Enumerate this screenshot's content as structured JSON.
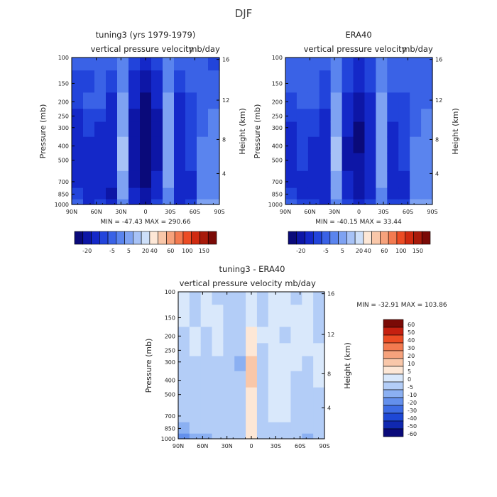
{
  "main_title": "DJF",
  "lat_labels": [
    "90N",
    "60N",
    "30N",
    "0",
    "30S",
    "60S",
    "90S"
  ],
  "pressure_labels": [
    "100",
    "150",
    "200",
    "250",
    "300",
    "400",
    "500",
    "700",
    "850",
    "1000"
  ],
  "height_labels": [
    "16",
    "12",
    "8",
    "4"
  ],
  "y_label": "Pressure (mb)",
  "y2_label": "Height (km)",
  "field_label": "vertical pressure velocity",
  "units_label": "mb/day",
  "panels": {
    "model": {
      "title": "tuning3 (yrs 1979-1979)",
      "stats": "MIN = -47.43   MAX = 290.66"
    },
    "obs": {
      "title": "ERA40",
      "stats": "MIN = -40.15   MAX = 33.44"
    },
    "diff": {
      "title": "tuning3 - ERA40",
      "stats": "MIN = -32.91   MAX = 103.86"
    }
  },
  "colorbar_main": {
    "labels": [
      "-20",
      "-5",
      "5",
      "20",
      "40",
      "60",
      "100",
      "150"
    ],
    "colors": [
      "#0a0a7a",
      "#0d16a6",
      "#1428c8",
      "#2244db",
      "#3a62e6",
      "#5a84ee",
      "#7ea2f2",
      "#a7c2f6",
      "#cddff9",
      "#fde7d6",
      "#f9c7a9",
      "#f6a27c",
      "#f37a50",
      "#ec4c24",
      "#cf2a10",
      "#a81a0a",
      "#7a0a06"
    ]
  },
  "colorbar_diff": {
    "labels": [
      "60",
      "50",
      "40",
      "30",
      "20",
      "10",
      "5",
      "0",
      "-5",
      "-10",
      "-20",
      "-30",
      "-40",
      "-50",
      "-60"
    ],
    "colors": [
      "#7a0a06",
      "#c52010",
      "#ec4c24",
      "#f37a50",
      "#f6a27c",
      "#f9c7a9",
      "#fde7d6",
      "#d9e8fb",
      "#b3cdf7",
      "#8bb0f2",
      "#6490ec",
      "#3e6ce4",
      "#1e48d6",
      "#1028b0",
      "#0a0a7a"
    ]
  },
  "chart_data": [
    {
      "type": "heatmap",
      "title": "tuning3 (yrs 1979-1979)",
      "subtitle": "vertical pressure velocity  mb/day",
      "xlabel": "",
      "ylabel": "Pressure (mb)",
      "y2label": "Height (km)",
      "x_ticks": [
        "90N",
        "60N",
        "30N",
        "0",
        "30S",
        "60S",
        "90S"
      ],
      "y_ticks": [
        100,
        150,
        200,
        250,
        300,
        400,
        500,
        700,
        850,
        1000
      ],
      "y_scale": "log",
      "ylim": [
        1000,
        100
      ],
      "min": -47.43,
      "max": 290.66,
      "contour_levels": [
        -20,
        -5,
        5,
        20,
        40,
        60,
        100,
        150
      ],
      "columns": [
        {
          "lat": 90,
          "values": [
            -12,
            -15,
            -18,
            -20,
            -22,
            -25,
            -25,
            -20,
            -15,
            -10
          ]
        },
        {
          "lat": 75,
          "values": [
            -12,
            -15,
            -12,
            -15,
            -18,
            -20,
            -20,
            -22,
            -25,
            -20
          ]
        },
        {
          "lat": 60,
          "values": [
            -10,
            -10,
            -12,
            -15,
            -20,
            -22,
            -22,
            -22,
            -20,
            -15
          ]
        },
        {
          "lat": 45,
          "values": [
            -10,
            -15,
            -20,
            -25,
            -25,
            -25,
            -25,
            -25,
            -30,
            -25
          ]
        },
        {
          "lat": 30,
          "values": [
            -8,
            -5,
            -3,
            -2,
            -2,
            -1,
            -1,
            -2,
            -3,
            -5
          ]
        },
        {
          "lat": 15,
          "values": [
            -15,
            -20,
            -25,
            -30,
            -35,
            -35,
            -35,
            -30,
            -25,
            -20
          ]
        },
        {
          "lat": 0,
          "values": [
            -25,
            -30,
            -40,
            -45,
            -47,
            -45,
            -45,
            -40,
            -35,
            -30
          ]
        },
        {
          "lat": -15,
          "values": [
            -18,
            -20,
            -25,
            -30,
            -32,
            -30,
            -30,
            -25,
            -20,
            -15
          ]
        },
        {
          "lat": -30,
          "values": [
            -8,
            -5,
            -3,
            -3,
            -3,
            -3,
            -3,
            -3,
            -5,
            -5
          ]
        },
        {
          "lat": -45,
          "values": [
            -12,
            -15,
            -20,
            -22,
            -22,
            -20,
            -20,
            -20,
            -22,
            -20
          ]
        },
        {
          "lat": -60,
          "values": [
            -10,
            -12,
            -15,
            -15,
            -15,
            -15,
            -18,
            -20,
            -22,
            -15
          ]
        },
        {
          "lat": -75,
          "values": [
            -12,
            -12,
            -10,
            -10,
            -10,
            -8,
            -8,
            -6,
            -5,
            -3
          ]
        },
        {
          "lat": -90,
          "values": [
            -15,
            -12,
            -10,
            -8,
            -8,
            -8,
            -6,
            -6,
            -5,
            -4
          ]
        }
      ]
    },
    {
      "type": "heatmap",
      "title": "ERA40",
      "subtitle": "vertical pressure velocity  mb/day",
      "xlabel": "",
      "ylabel": "Pressure (mb)",
      "y2label": "Height (km)",
      "x_ticks": [
        "90N",
        "60N",
        "30N",
        "0",
        "30S",
        "60S",
        "90S"
      ],
      "y_ticks": [
        100,
        150,
        200,
        250,
        300,
        400,
        500,
        700,
        850,
        1000
      ],
      "y_scale": "log",
      "ylim": [
        1000,
        100
      ],
      "min": -40.15,
      "max": 33.44,
      "contour_levels": [
        -20,
        -5,
        5,
        20,
        40,
        60,
        100,
        150
      ],
      "columns": [
        {
          "lat": 90,
          "values": [
            -12,
            -12,
            -15,
            -18,
            -20,
            -22,
            -22,
            -20,
            -15,
            -10
          ]
        },
        {
          "lat": 75,
          "values": [
            -10,
            -12,
            -12,
            -15,
            -15,
            -18,
            -18,
            -20,
            -22,
            -15
          ]
        },
        {
          "lat": 60,
          "values": [
            -10,
            -10,
            -12,
            -15,
            -18,
            -20,
            -20,
            -22,
            -22,
            -15
          ]
        },
        {
          "lat": 45,
          "values": [
            -12,
            -15,
            -18,
            -20,
            -22,
            -22,
            -22,
            -25,
            -28,
            -20
          ]
        },
        {
          "lat": 30,
          "values": [
            -8,
            -5,
            -3,
            -2,
            -2,
            -1,
            -1,
            -2,
            -3,
            -5
          ]
        },
        {
          "lat": 15,
          "values": [
            -15,
            -18,
            -22,
            -25,
            -28,
            -30,
            -30,
            -28,
            -25,
            -18
          ]
        },
        {
          "lat": 0,
          "values": [
            -22,
            -28,
            -35,
            -38,
            -40,
            -40,
            -38,
            -35,
            -30,
            -25
          ]
        },
        {
          "lat": -15,
          "values": [
            -15,
            -18,
            -22,
            -25,
            -25,
            -25,
            -25,
            -22,
            -20,
            -15
          ]
        },
        {
          "lat": -30,
          "values": [
            -8,
            -5,
            -3,
            -2,
            -2,
            -2,
            -2,
            -3,
            -5,
            -5
          ]
        },
        {
          "lat": -45,
          "values": [
            -10,
            -12,
            -15,
            -18,
            -20,
            -20,
            -20,
            -20,
            -22,
            -18
          ]
        },
        {
          "lat": -60,
          "values": [
            -10,
            -12,
            -15,
            -15,
            -15,
            -15,
            -18,
            -20,
            -22,
            -15
          ]
        },
        {
          "lat": -75,
          "values": [
            -10,
            -10,
            -10,
            -10,
            -10,
            -8,
            -8,
            -6,
            -5,
            -3
          ]
        },
        {
          "lat": -90,
          "values": [
            -12,
            -10,
            -10,
            -8,
            -8,
            -8,
            -6,
            -6,
            -5,
            -4
          ]
        }
      ]
    },
    {
      "type": "heatmap",
      "title": "tuning3 - ERA40",
      "subtitle": "vertical pressure velocity  mb/day",
      "xlabel": "",
      "ylabel": "Pressure (mb)",
      "y2label": "Height (km)",
      "x_ticks": [
        "90N",
        "60N",
        "30N",
        "0",
        "30S",
        "60S",
        "90S"
      ],
      "y_ticks": [
        100,
        150,
        200,
        250,
        300,
        400,
        500,
        700,
        850,
        1000
      ],
      "y_scale": "log",
      "ylim": [
        1000,
        100
      ],
      "min": -32.91,
      "max": 103.86,
      "contour_levels": [
        -60,
        -50,
        -40,
        -30,
        -20,
        -10,
        -5,
        0,
        5,
        10,
        20,
        30,
        40,
        50,
        60
      ],
      "columns": [
        {
          "lat": 90,
          "values": [
            1,
            2,
            -1,
            -2,
            -2,
            -3,
            -3,
            -3,
            -6,
            -12
          ]
        },
        {
          "lat": 75,
          "values": [
            -1,
            -2,
            1,
            2,
            -1,
            -2,
            -3,
            -3,
            -5,
            -8
          ]
        },
        {
          "lat": 60,
          "values": [
            2,
            1,
            -1,
            -2,
            -1,
            -1,
            -2,
            -2,
            -4,
            -6
          ]
        },
        {
          "lat": 45,
          "values": [
            -2,
            1,
            2,
            1,
            -1,
            -2,
            -2,
            -1,
            -3,
            -5
          ]
        },
        {
          "lat": 30,
          "values": [
            -1,
            -2,
            -2,
            -1,
            -3,
            -4,
            -3,
            -2,
            -2,
            -3
          ]
        },
        {
          "lat": 15,
          "values": [
            -2,
            -1,
            -2,
            -3,
            -6,
            -5,
            -3,
            -2,
            -2,
            -3
          ]
        },
        {
          "lat": 0,
          "values": [
            2,
            3,
            6,
            8,
            12,
            10,
            9,
            7,
            6,
            8
          ]
        },
        {
          "lat": -15,
          "values": [
            -2,
            -1,
            1,
            -1,
            -2,
            -2,
            -3,
            -2,
            -3,
            -4
          ]
        },
        {
          "lat": -30,
          "values": [
            1,
            2,
            2,
            1,
            1,
            2,
            1,
            1,
            -1,
            -2
          ]
        },
        {
          "lat": -45,
          "values": [
            2,
            1,
            -1,
            2,
            2,
            1,
            2,
            1,
            -1,
            -3
          ]
        },
        {
          "lat": -60,
          "values": [
            -1,
            1,
            1,
            1,
            1,
            -1,
            -1,
            -2,
            -2,
            -5
          ]
        },
        {
          "lat": -75,
          "values": [
            1,
            2,
            1,
            1,
            -1,
            -1,
            -2,
            -2,
            -3,
            -6
          ]
        },
        {
          "lat": -90,
          "values": [
            -2,
            -1,
            -1,
            1,
            1,
            1,
            -1,
            -2,
            -3,
            -5
          ]
        }
      ]
    }
  ]
}
